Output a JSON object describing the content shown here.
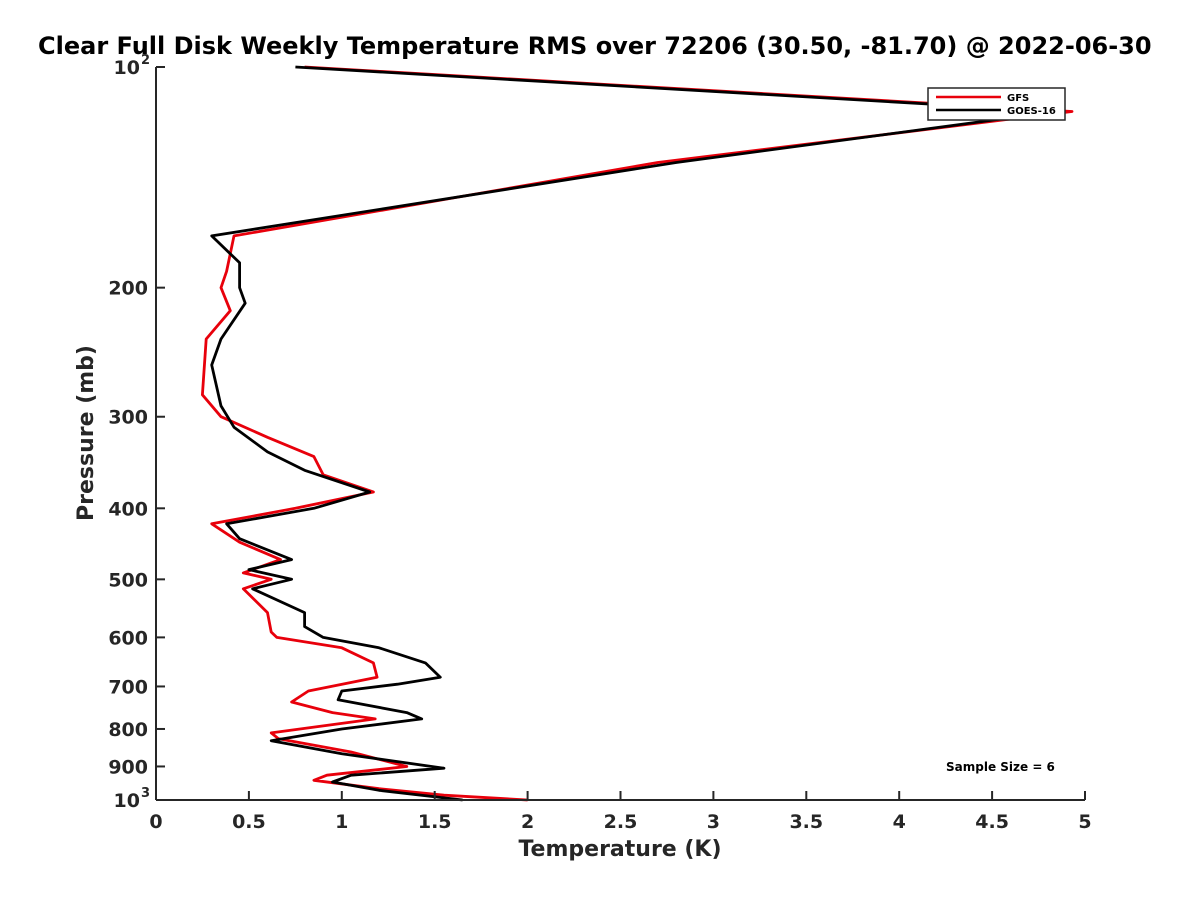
{
  "chart_data": {
    "type": "line",
    "title": "Clear Full Disk Weekly Temperature RMS over 72206 (30.50, -81.70) @ 2022-06-30",
    "xlabel": "Temperature (K)",
    "ylabel": "Pressure (mb)",
    "xlim": [
      0,
      5
    ],
    "ylim": [
      100,
      1000
    ],
    "y_scale": "log",
    "y_reversed": true,
    "grid": false,
    "legend_position": "top-right",
    "x_ticks": [
      "0",
      "0.5",
      "1",
      "1.5",
      "2",
      "2.5",
      "3",
      "3.5",
      "4",
      "4.5",
      "5"
    ],
    "x_tick_values": [
      0,
      0.5,
      1,
      1.5,
      2,
      2.5,
      3,
      3.5,
      4,
      4.5,
      5
    ],
    "y_ticks": [
      {
        "value": 100,
        "base": "10",
        "exp": "2",
        "label": ""
      },
      {
        "value": 200,
        "label": "200"
      },
      {
        "value": 300,
        "label": "300"
      },
      {
        "value": 400,
        "label": "400"
      },
      {
        "value": 500,
        "label": "500"
      },
      {
        "value": 600,
        "label": "600"
      },
      {
        "value": 700,
        "label": "700"
      },
      {
        "value": 800,
        "label": "800"
      },
      {
        "value": 900,
        "label": "900"
      },
      {
        "value": 1000,
        "base": "10",
        "exp": "3",
        "label": ""
      }
    ],
    "annotation": "Sample Size = 6",
    "series": [
      {
        "name": "GFS",
        "color": "#e8000b",
        "points": [
          [
            0.8,
            100
          ],
          [
            4.93,
            115
          ],
          [
            2.7,
            135
          ],
          [
            0.42,
            170
          ],
          [
            0.38,
            190
          ],
          [
            0.35,
            200
          ],
          [
            0.4,
            215
          ],
          [
            0.27,
            235
          ],
          [
            0.25,
            280
          ],
          [
            0.35,
            300
          ],
          [
            0.6,
            320
          ],
          [
            0.85,
            340
          ],
          [
            0.9,
            360
          ],
          [
            1.17,
            380
          ],
          [
            0.75,
            400
          ],
          [
            0.3,
            420
          ],
          [
            0.45,
            445
          ],
          [
            0.67,
            470
          ],
          [
            0.47,
            490
          ],
          [
            0.62,
            500
          ],
          [
            0.47,
            515
          ],
          [
            0.6,
            555
          ],
          [
            0.62,
            590
          ],
          [
            0.65,
            600
          ],
          [
            1.0,
            620
          ],
          [
            1.17,
            650
          ],
          [
            1.19,
            680
          ],
          [
            0.82,
            710
          ],
          [
            0.73,
            735
          ],
          [
            0.95,
            760
          ],
          [
            1.18,
            775
          ],
          [
            0.62,
            810
          ],
          [
            0.66,
            825
          ],
          [
            1.05,
            860
          ],
          [
            1.35,
            900
          ],
          [
            0.92,
            925
          ],
          [
            0.85,
            940
          ],
          [
            1.2,
            965
          ],
          [
            1.55,
            985
          ],
          [
            2.0,
            1000
          ]
        ]
      },
      {
        "name": "GOES-16",
        "color": "#000000",
        "points": [
          [
            0.75,
            100
          ],
          [
            4.85,
            115
          ],
          [
            2.8,
            135
          ],
          [
            0.3,
            170
          ],
          [
            0.45,
            185
          ],
          [
            0.45,
            200
          ],
          [
            0.48,
            210
          ],
          [
            0.35,
            235
          ],
          [
            0.3,
            255
          ],
          [
            0.35,
            290
          ],
          [
            0.42,
            310
          ],
          [
            0.6,
            335
          ],
          [
            0.8,
            355
          ],
          [
            1.15,
            380
          ],
          [
            0.85,
            400
          ],
          [
            0.38,
            420
          ],
          [
            0.45,
            440
          ],
          [
            0.73,
            470
          ],
          [
            0.5,
            485
          ],
          [
            0.73,
            500
          ],
          [
            0.52,
            515
          ],
          [
            0.8,
            555
          ],
          [
            0.8,
            580
          ],
          [
            0.9,
            600
          ],
          [
            1.2,
            620
          ],
          [
            1.45,
            650
          ],
          [
            1.53,
            680
          ],
          [
            1.3,
            695
          ],
          [
            1.0,
            710
          ],
          [
            0.98,
            730
          ],
          [
            1.35,
            760
          ],
          [
            1.43,
            775
          ],
          [
            1.0,
            800
          ],
          [
            0.62,
            830
          ],
          [
            1.0,
            865
          ],
          [
            1.55,
            905
          ],
          [
            1.05,
            925
          ],
          [
            0.95,
            945
          ],
          [
            1.2,
            970
          ],
          [
            1.65,
            1000
          ]
        ]
      }
    ]
  }
}
